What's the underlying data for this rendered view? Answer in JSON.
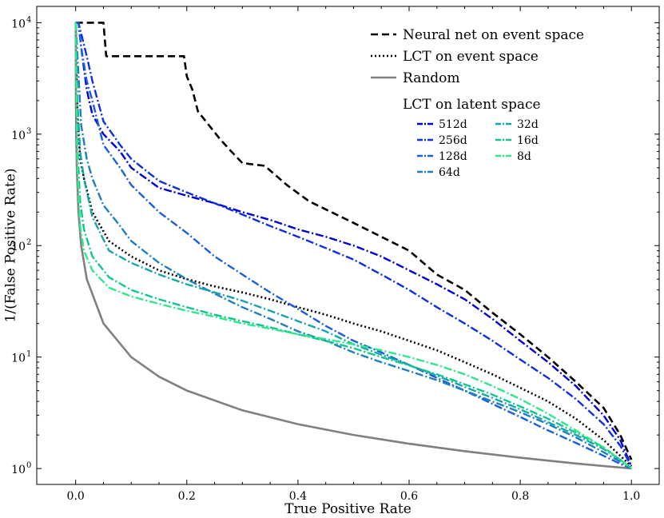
{
  "chart_data": {
    "type": "line",
    "title": "",
    "xlabel": "True Positive Rate",
    "ylabel": "1/(False Positive Rate)",
    "xlim": [
      -0.07,
      1.05
    ],
    "ylim": [
      0.72,
      14000
    ],
    "yscale": "log",
    "grid": false,
    "legend_placement": "top-right",
    "x_ticks": [
      0.0,
      0.2,
      0.4,
      0.6,
      0.8,
      1.0
    ],
    "x_tick_labels": [
      "0.0",
      "0.2",
      "0.4",
      "0.6",
      "0.8",
      "1.0"
    ],
    "y_ticks": [
      1,
      10,
      100,
      1000,
      10000
    ],
    "y_tick_labels": [
      "10",
      "10",
      "10",
      "10",
      "10"
    ],
    "y_tick_exponents": [
      "0",
      "1",
      "2",
      "3",
      "4"
    ],
    "legend_group_title": "LCT on latent space",
    "series": [
      {
        "name": "Neural net on event space",
        "group": "main",
        "color": "#000000",
        "dash": "9 5",
        "width": 2.6,
        "x": [
          0.0,
          0.003,
          0.01,
          0.03,
          0.05,
          0.055,
          0.06,
          0.1,
          0.15,
          0.195,
          0.2,
          0.21,
          0.22,
          0.24,
          0.26,
          0.28,
          0.3,
          0.34,
          0.38,
          0.42,
          0.46,
          0.5,
          0.55,
          0.6,
          0.65,
          0.7,
          0.75,
          0.8,
          0.85,
          0.9,
          0.95,
          0.98,
          1.0
        ],
        "y": [
          10000,
          10000,
          10000,
          10000,
          10000,
          5000,
          5000,
          5000,
          5000,
          5000,
          3300,
          2500,
          1600,
          1200,
          900,
          700,
          550,
          520,
          350,
          250,
          200,
          160,
          120,
          90,
          55,
          40,
          25,
          16,
          10,
          6,
          3.5,
          2,
          1.2
        ]
      },
      {
        "name": "LCT on event space",
        "group": "main",
        "color": "#000000",
        "dash": "2 3",
        "width": 2.6,
        "x": [
          0.0,
          0.003,
          0.008,
          0.015,
          0.03,
          0.06,
          0.1,
          0.15,
          0.2,
          0.25,
          0.3,
          0.35,
          0.4,
          0.45,
          0.5,
          0.55,
          0.6,
          0.65,
          0.7,
          0.75,
          0.8,
          0.85,
          0.9,
          0.95,
          0.98,
          1.0
        ],
        "y": [
          10000,
          1500,
          600,
          400,
          200,
          110,
          80,
          60,
          50,
          43,
          38,
          33,
          28,
          24,
          20,
          17,
          14,
          11.5,
          9,
          7,
          5.3,
          4,
          2.8,
          1.8,
          1.3,
          1.05
        ]
      },
      {
        "name": "Random",
        "group": "main",
        "color": "#808080",
        "dash": "",
        "width": 2.6,
        "x": [
          0.0001,
          0.0005,
          0.001,
          0.002,
          0.005,
          0.01,
          0.02,
          0.05,
          0.1,
          0.15,
          0.2,
          0.3,
          0.4,
          0.5,
          0.6,
          0.7,
          0.8,
          0.9,
          1.0
        ],
        "y": [
          10000,
          2000,
          1000,
          500,
          200,
          100,
          50,
          20,
          10,
          6.67,
          5,
          3.33,
          2.5,
          2,
          1.67,
          1.43,
          1.25,
          1.11,
          1.0
        ]
      },
      {
        "name": "512d",
        "group": "latent",
        "color": "#0000d8",
        "dash": "10 3 2 3",
        "width": 2.4,
        "x": [
          0.0,
          0.005,
          0.01,
          0.02,
          0.03,
          0.05,
          0.08,
          0.1,
          0.15,
          0.2,
          0.25,
          0.3,
          0.35,
          0.4,
          0.45,
          0.5,
          0.55,
          0.6,
          0.65,
          0.7,
          0.75,
          0.8,
          0.85,
          0.9,
          0.95,
          0.98,
          1.0
        ],
        "y": [
          10000,
          10000,
          6000,
          2500,
          1500,
          1000,
          700,
          500,
          330,
          280,
          240,
          200,
          170,
          140,
          120,
          100,
          80,
          60,
          45,
          33,
          22,
          14,
          9,
          5.5,
          3,
          1.8,
          1.05
        ]
      },
      {
        "name": "256d",
        "group": "latent",
        "color": "#0d2fe0",
        "dash": "10 3 2 3",
        "width": 2.4,
        "x": [
          0.0,
          0.005,
          0.01,
          0.02,
          0.03,
          0.05,
          0.08,
          0.1,
          0.15,
          0.2,
          0.25,
          0.3,
          0.35,
          0.4,
          0.45,
          0.5,
          0.55,
          0.6,
          0.65,
          0.7,
          0.75,
          0.8,
          0.85,
          0.9,
          0.95,
          0.98,
          1.0
        ],
        "y": [
          10000,
          10000,
          8000,
          5000,
          3000,
          1300,
          800,
          600,
          380,
          300,
          240,
          190,
          150,
          120,
          95,
          75,
          55,
          40,
          28,
          20,
          14,
          9.5,
          6.5,
          4.2,
          2.5,
          1.6,
          1.05
        ]
      },
      {
        "name": "128d",
        "group": "latent",
        "color": "#1a5ee0",
        "dash": "10 3 2 3",
        "width": 2.4,
        "x": [
          0.0,
          0.005,
          0.01,
          0.02,
          0.03,
          0.05,
          0.08,
          0.1,
          0.15,
          0.2,
          0.25,
          0.3,
          0.35,
          0.4,
          0.45,
          0.5,
          0.55,
          0.6,
          0.65,
          0.7,
          0.75,
          0.8,
          0.85,
          0.9,
          0.95,
          0.98,
          1.0
        ],
        "y": [
          10000,
          10000,
          6000,
          3000,
          2000,
          800,
          500,
          350,
          200,
          130,
          80,
          55,
          38,
          27,
          19,
          14,
          11,
          8.5,
          6.5,
          5,
          3.8,
          2.9,
          2.2,
          1.7,
          1.3,
          1.1,
          1.0
        ]
      },
      {
        "name": "64d",
        "group": "latent",
        "color": "#1f7fc0",
        "dash": "10 3 2 3",
        "width": 2.4,
        "x": [
          0.0,
          0.005,
          0.01,
          0.02,
          0.03,
          0.05,
          0.08,
          0.1,
          0.15,
          0.2,
          0.25,
          0.3,
          0.35,
          0.4,
          0.45,
          0.5,
          0.55,
          0.6,
          0.65,
          0.7,
          0.75,
          0.8,
          0.85,
          0.9,
          0.95,
          0.98,
          1.0
        ],
        "y": [
          10000,
          3500,
          1200,
          600,
          400,
          230,
          150,
          110,
          70,
          50,
          37,
          28,
          22,
          17,
          14,
          11,
          9,
          7.5,
          6.2,
          5,
          4,
          3.2,
          2.5,
          1.9,
          1.4,
          1.15,
          1.0
        ]
      },
      {
        "name": "32d",
        "group": "latent",
        "color": "#16a5a8",
        "dash": "10 3 2 3",
        "width": 2.4,
        "x": [
          0.0,
          0.003,
          0.008,
          0.015,
          0.03,
          0.06,
          0.1,
          0.15,
          0.2,
          0.25,
          0.3,
          0.35,
          0.4,
          0.45,
          0.5,
          0.55,
          0.6,
          0.65,
          0.7,
          0.75,
          0.8,
          0.85,
          0.9,
          0.95,
          0.98,
          1.0
        ],
        "y": [
          10000,
          2000,
          700,
          400,
          180,
          90,
          70,
          55,
          45,
          38,
          32,
          26,
          21,
          17,
          13,
          10.5,
          8.5,
          6.8,
          5.4,
          4.3,
          3.4,
          2.6,
          2.0,
          1.5,
          1.2,
          1.0
        ]
      },
      {
        "name": "16d",
        "group": "latent",
        "color": "#12c58e",
        "dash": "10 3 2 3",
        "width": 2.4,
        "x": [
          0.0,
          0.003,
          0.008,
          0.015,
          0.03,
          0.06,
          0.1,
          0.15,
          0.2,
          0.25,
          0.3,
          0.35,
          0.4,
          0.45,
          0.5,
          0.55,
          0.6,
          0.65,
          0.7,
          0.75,
          0.8,
          0.85,
          0.9,
          0.95,
          0.98,
          1.0
        ],
        "y": [
          10000,
          800,
          250,
          140,
          80,
          52,
          40,
          33,
          28,
          24,
          21,
          18.5,
          16,
          14,
          12,
          10,
          8.4,
          7,
          5.7,
          4.6,
          3.6,
          2.8,
          2.1,
          1.55,
          1.2,
          1.0
        ]
      },
      {
        "name": "8d",
        "group": "latent",
        "color": "#2ee88a",
        "dash": "10 3 2 3",
        "width": 2.4,
        "x": [
          0.0,
          0.003,
          0.008,
          0.015,
          0.03,
          0.06,
          0.1,
          0.15,
          0.2,
          0.25,
          0.3,
          0.35,
          0.4,
          0.45,
          0.5,
          0.55,
          0.6,
          0.65,
          0.7,
          0.75,
          0.8,
          0.85,
          0.9,
          0.95,
          0.98,
          1.0
        ],
        "y": [
          10000,
          500,
          150,
          90,
          60,
          42,
          35,
          30,
          26,
          23,
          20,
          18,
          16,
          14.5,
          13,
          11.5,
          10,
          8.5,
          7,
          5.5,
          4.2,
          3.1,
          2.2,
          1.55,
          1.2,
          1.0
        ]
      }
    ]
  }
}
